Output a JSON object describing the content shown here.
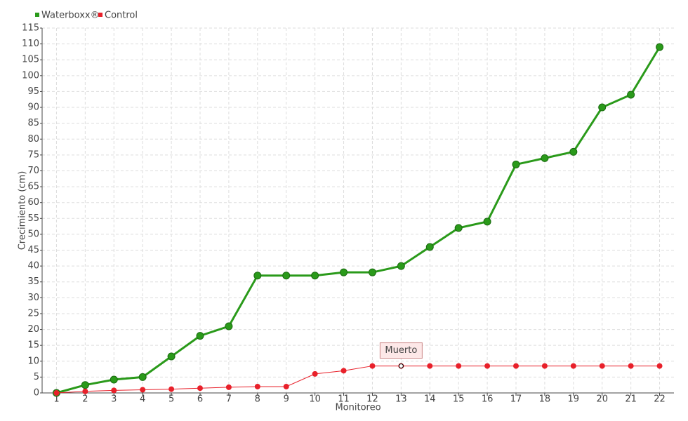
{
  "chart_data": {
    "type": "line",
    "x_label": "Monitoreo",
    "y_label": "Crecimiento (cm)",
    "categories": [
      "1",
      "2",
      "3",
      "4",
      "5",
      "6",
      "7",
      "8",
      "9",
      "10",
      "11",
      "12",
      "13",
      "14",
      "15",
      "16",
      "17",
      "18",
      "19",
      "20",
      "21",
      "22"
    ],
    "series": [
      {
        "name": "Waterboxx®",
        "color": "#2a9a1a",
        "values": [
          0,
          2.5,
          4.2,
          5,
          11.5,
          18,
          21,
          37,
          37,
          37,
          38,
          38,
          40,
          46,
          52,
          54,
          72,
          74,
          76,
          90,
          94,
          109
        ]
      },
      {
        "name": "Control",
        "color": "#e8202a",
        "values": [
          0,
          0.5,
          0.8,
          1,
          1.2,
          1.5,
          1.8,
          2,
          2,
          6,
          7,
          8.5,
          8.5,
          8.5,
          8.5,
          8.5,
          8.5,
          8.5,
          8.5,
          8.5,
          8.5,
          8.5
        ]
      }
    ],
    "annotations": [
      {
        "text": "Muerto",
        "x": "13",
        "y": 8.5
      }
    ],
    "ylim": [
      0,
      115
    ],
    "yticks": [
      0,
      5,
      10,
      15,
      20,
      25,
      30,
      35,
      40,
      45,
      50,
      55,
      60,
      65,
      70,
      75,
      80,
      85,
      90,
      95,
      100,
      105,
      110,
      115
    ],
    "grid": true,
    "legend": "top-left"
  }
}
